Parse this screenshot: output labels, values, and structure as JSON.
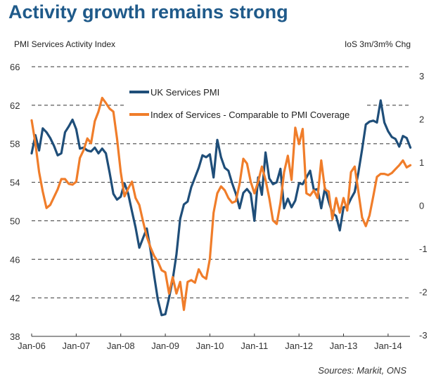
{
  "header": {
    "title": "Activity growth remains strong",
    "left_axis_title": "PMI Services Activity Index",
    "right_axis_title": "IoS 3m/3m% Chg",
    "source": "Sources: Markit, ONS"
  },
  "chart_data": {
    "type": "line",
    "title": "Activity growth remains strong",
    "xlabel": "",
    "ylabel": "PMI Services Activity Index",
    "y2label": "IoS 3m/3m% Chg",
    "ylim": [
      38,
      66
    ],
    "y2lim": [
      -3,
      3
    ],
    "yticks": [
      38,
      42,
      46,
      50,
      54,
      58,
      62,
      66
    ],
    "y2ticks": [
      -3,
      -2,
      -1,
      0,
      1,
      2,
      3
    ],
    "xticks": [
      "Jan-06",
      "Jan-07",
      "Jan-08",
      "Jan-09",
      "Jan-10",
      "Jan-11",
      "Jan-12",
      "Jan-13",
      "Jan-14"
    ],
    "x_start": "Jan-06",
    "x_unit": "month",
    "grid": "horizontal dashed",
    "legend_position": "top-center",
    "series": [
      {
        "name": "UK Services PMI",
        "axis": "left",
        "color": "#1f4e79",
        "values": [
          57.0,
          58.9,
          57.3,
          59.6,
          59.2,
          58.6,
          57.8,
          56.8,
          57.0,
          59.2,
          59.8,
          60.5,
          59.5,
          57.5,
          57.6,
          57.3,
          57.2,
          57.6,
          57.0,
          57.5,
          57.0,
          55.0,
          52.8,
          52.2,
          52.5,
          53.9,
          52.8,
          51.0,
          49.3,
          47.2,
          48.2,
          49.2,
          47.0,
          44.3,
          41.8,
          40.2,
          40.3,
          42.0,
          43.9,
          46.5,
          50.2,
          51.7,
          52.0,
          53.5,
          54.5,
          55.5,
          56.8,
          56.6,
          56.9,
          54.5,
          58.4,
          56.6,
          55.5,
          55.2,
          53.9,
          52.8,
          51.3,
          52.9,
          53.3,
          52.8,
          50.0,
          54.5,
          52.7,
          57.1,
          54.4,
          53.8,
          54.0,
          55.4,
          51.3,
          52.3,
          51.4,
          52.1,
          53.9,
          53.8,
          54.5,
          55.2,
          53.2,
          53.3,
          51.3,
          53.4,
          52.0,
          50.8,
          50.5,
          49.0,
          51.4,
          51.5,
          52.3,
          53.0,
          55.0,
          57.4,
          60.0,
          60.3,
          60.4,
          60.2,
          62.5,
          60.2,
          59.3,
          58.7,
          58.5,
          57.7,
          58.8,
          58.6,
          57.6
        ]
      },
      {
        "name": "Index of Services - Comparable to PMI Coverage",
        "axis": "right",
        "color": "#f07d2a",
        "values": [
          1.97,
          1.44,
          0.77,
          0.32,
          -0.06,
          0.01,
          0.19,
          0.37,
          0.61,
          0.61,
          0.5,
          0.48,
          0.55,
          1.1,
          1.28,
          1.55,
          1.44,
          1.95,
          2.17,
          2.49,
          2.37,
          2.24,
          2.17,
          1.55,
          0.77,
          0.21,
          0.39,
          0.55,
          0.17,
          0.01,
          -0.37,
          -0.72,
          -0.97,
          -1.17,
          -1.3,
          -1.5,
          -1.55,
          -2.04,
          -1.66,
          -2.04,
          -1.77,
          -2.42,
          -1.77,
          -1.73,
          -1.79,
          -1.48,
          -1.64,
          -1.7,
          -1.24,
          -0.17,
          0.28,
          0.44,
          0.35,
          0.17,
          0.06,
          0.1,
          0.5,
          1.08,
          0.97,
          0.55,
          0.28,
          0.55,
          0.9,
          0.59,
          0.17,
          -0.35,
          -0.43,
          0.06,
          0.77,
          1.15,
          0.59,
          1.8,
          1.42,
          1.77,
          0.28,
          0.23,
          0.35,
          0.17,
          1.04,
          0.37,
          0.32,
          -0.32,
          0.17,
          -0.17,
          0.17,
          -0.12,
          0.77,
          0.9,
          0.32,
          -0.28,
          -0.48,
          -0.23,
          0.21,
          0.66,
          0.73,
          0.73,
          0.7,
          0.75,
          0.84,
          0.93,
          1.04,
          0.88,
          0.93
        ]
      }
    ]
  }
}
